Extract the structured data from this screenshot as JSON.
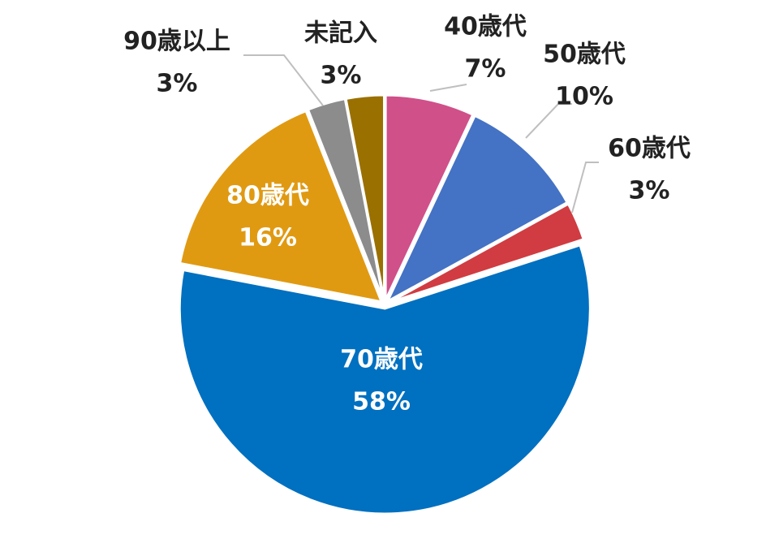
{
  "chart_data": {
    "type": "pie",
    "categories": [
      "40歳代",
      "50歳代",
      "60歳代",
      "70歳代",
      "80歳代",
      "90歳以上",
      "未記入"
    ],
    "values": [
      7,
      10,
      3,
      58,
      16,
      3,
      3
    ],
    "value_labels": [
      "7%",
      "10%",
      "3%",
      "58%",
      "16%",
      "3%",
      "3%"
    ],
    "colors": [
      "#d0508a",
      "#4472c4",
      "#d03c41",
      "#0070c0",
      "#e09a12",
      "#8c8c8c",
      "#9a7000"
    ]
  }
}
